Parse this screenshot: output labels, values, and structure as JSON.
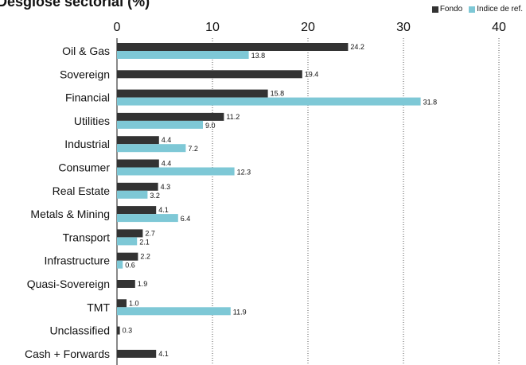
{
  "chart_data": {
    "type": "bar",
    "orientation": "horizontal",
    "title": "Desglose sectorial (%)",
    "categories": [
      "Oil & Gas",
      "Sovereign",
      "Financial",
      "Utilities",
      "Industrial",
      "Consumer",
      "Real Estate",
      "Metals & Mining",
      "Transport",
      "Infrastructure",
      "Quasi-Sovereign",
      "TMT",
      "Unclassified",
      "Cash + Forwards"
    ],
    "series": [
      {
        "name": "Fondo",
        "color": "#333333",
        "values": [
          24.2,
          19.4,
          15.8,
          11.2,
          4.4,
          4.4,
          4.3,
          4.1,
          2.7,
          2.2,
          1.9,
          1.0,
          0.3,
          4.1
        ]
      },
      {
        "name": "Indice de ref.",
        "color": "#7ec8d6",
        "values": [
          13.8,
          null,
          31.8,
          9.0,
          7.2,
          12.3,
          3.2,
          6.4,
          2.1,
          0.6,
          null,
          11.9,
          null,
          null
        ]
      }
    ],
    "value_labels": {
      "Fondo": [
        "24.2",
        "19.4",
        "15.8",
        "11.2",
        "4.4",
        "4.4",
        "4.3",
        "4.1",
        "2.7",
        "2.2",
        "1.9",
        "1.0",
        "0.3",
        "4.1"
      ],
      "Indice de ref.": [
        "13.8",
        null,
        "31.8",
        "9.0",
        "7.2",
        "12.3",
        "3.2",
        "6.4",
        "2.1",
        "0.6",
        null,
        "11.9",
        null,
        null
      ]
    },
    "xlim": [
      0,
      40
    ],
    "xticks": [
      "0",
      "10",
      "20",
      "30",
      "40"
    ],
    "x_axis_position": "top",
    "grid": "vertical dotted",
    "legend_position": "top-right"
  }
}
